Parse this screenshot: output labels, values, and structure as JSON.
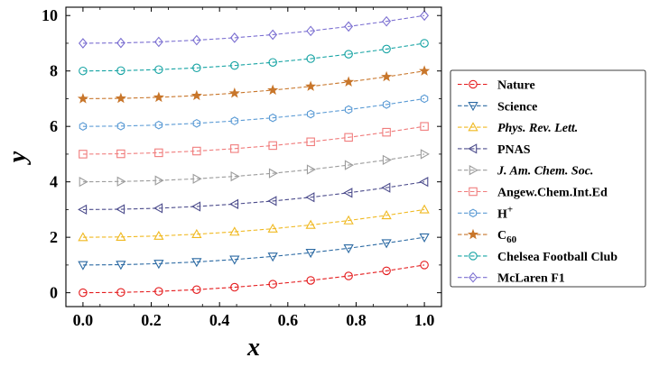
{
  "chart_data": {
    "type": "line",
    "title": "",
    "xlabel": "x",
    "ylabel": "y",
    "xlim": [
      -0.05,
      1.05
    ],
    "ylim": [
      -0.5,
      10.3
    ],
    "xticks": [
      0.0,
      0.2,
      0.4,
      0.6,
      0.8,
      1.0
    ],
    "xtick_labels": [
      "0.0",
      "0.2",
      "0.4",
      "0.6",
      "0.8",
      "1.0"
    ],
    "yticks": [
      0,
      2,
      4,
      6,
      8,
      10
    ],
    "ytick_labels": [
      "0",
      "2",
      "4",
      "6",
      "8",
      "10"
    ],
    "grid": false,
    "legend_position": "outside-right",
    "x": [
      0.0,
      0.111,
      0.222,
      0.333,
      0.444,
      0.556,
      0.667,
      0.778,
      0.889,
      1.0
    ],
    "series": [
      {
        "name": "Nature",
        "label_main": "Nature",
        "label_sub": "",
        "italic": false,
        "color": "#e41a1c",
        "marker": "circle",
        "values": [
          0.0,
          0.012,
          0.049,
          0.111,
          0.198,
          0.309,
          0.444,
          0.605,
          0.79,
          1.0
        ]
      },
      {
        "name": "Science",
        "label_main": "Science",
        "label_sub": "",
        "italic": false,
        "color": "#2c6aa3",
        "marker": "triangle-down",
        "values": [
          1.0,
          1.012,
          1.049,
          1.111,
          1.198,
          1.309,
          1.444,
          1.605,
          1.79,
          2.0
        ]
      },
      {
        "name": "Phys. Rev. Lett.",
        "label_main": "Phys. Rev. Lett.",
        "label_sub": "",
        "italic": true,
        "color": "#f0b921",
        "marker": "triangle-up",
        "values": [
          2.0,
          2.012,
          2.049,
          2.111,
          2.198,
          2.309,
          2.444,
          2.605,
          2.79,
          3.0
        ]
      },
      {
        "name": "PNAS",
        "label_main": "PNAS",
        "label_sub": "",
        "italic": false,
        "color": "#4c4c8c",
        "marker": "triangle-left",
        "values": [
          3.0,
          3.012,
          3.049,
          3.111,
          3.198,
          3.309,
          3.444,
          3.605,
          3.79,
          4.0
        ]
      },
      {
        "name": "J. Am. Chem. Soc.",
        "label_main": "J. Am. Chem. Soc.",
        "label_sub": "",
        "italic": true,
        "color": "#9c9c9c",
        "marker": "triangle-right",
        "values": [
          4.0,
          4.012,
          4.049,
          4.111,
          4.198,
          4.309,
          4.444,
          4.605,
          4.79,
          5.0
        ]
      },
      {
        "name": "Angew. Chem. Int. Ed",
        "label_main": "Angew.Chem.Int.Ed",
        "label_sub": "",
        "italic": false,
        "color": "#f07c7c",
        "marker": "square",
        "values": [
          5.0,
          5.012,
          5.049,
          5.111,
          5.198,
          5.309,
          5.444,
          5.605,
          5.79,
          6.0
        ]
      },
      {
        "name": "H+",
        "label_main": "H",
        "label_sub": "+",
        "italic": false,
        "color": "#5b9bd5",
        "marker": "hexagon",
        "values": [
          6.0,
          6.012,
          6.049,
          6.111,
          6.198,
          6.309,
          6.444,
          6.605,
          6.79,
          7.0
        ]
      },
      {
        "name": "C60",
        "label_main": "C",
        "label_sub": "60",
        "italic": false,
        "color": "#c8762b",
        "marker": "star",
        "values": [
          7.0,
          7.012,
          7.049,
          7.111,
          7.198,
          7.309,
          7.444,
          7.605,
          7.79,
          8.0
        ]
      },
      {
        "name": "Chelsea Football Club",
        "label_main": "Chelsea Football Club",
        "label_sub": "",
        "italic": false,
        "color": "#15a3a3",
        "marker": "circle-open",
        "values": [
          8.0,
          8.012,
          8.049,
          8.111,
          8.198,
          8.309,
          8.444,
          8.605,
          8.79,
          9.0
        ]
      },
      {
        "name": "McLaren F1",
        "label_main": "McLaren F1",
        "label_sub": "",
        "italic": false,
        "color": "#7b6fd1",
        "marker": "diamond",
        "values": [
          9.0,
          9.012,
          9.049,
          9.111,
          9.198,
          9.309,
          9.444,
          9.605,
          9.79,
          10.0
        ]
      }
    ]
  }
}
